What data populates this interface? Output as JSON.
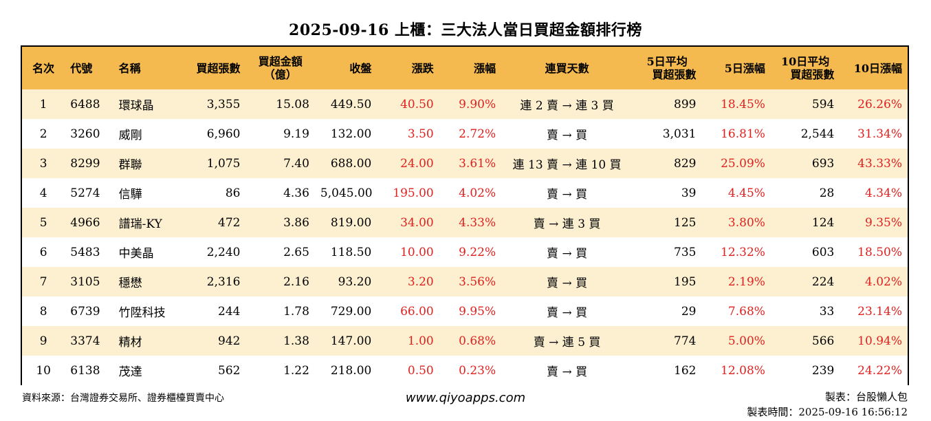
{
  "title": "2025-09-16 上櫃：三大法人當日買超金額排行榜",
  "headers": {
    "rank": "名次",
    "code": "代號",
    "name": "名稱",
    "shares": "買超張數",
    "amount_l1": "買超金額",
    "amount_l2": "（億）",
    "close": "收盤",
    "change": "漲跌",
    "pct": "漲幅",
    "streak": "連買天數",
    "avg5_l1": "5日平均",
    "avg5_l2": "買超張數",
    "pct5": "5日漲幅",
    "avg10_l1": "10日平均",
    "avg10_l2": "買超張數",
    "pct10": "10日漲幅"
  },
  "rows": [
    {
      "rank": "1",
      "code": "6488",
      "name": "環球晶",
      "shares": "3,355",
      "amount": "15.08",
      "close": "449.50",
      "change": "40.50",
      "pct": "9.90%",
      "streak": "連 2 賣 → 連 3 買",
      "avg5": "899",
      "pct5": "18.45%",
      "avg10": "594",
      "pct10": "26.26%"
    },
    {
      "rank": "2",
      "code": "3260",
      "name": "威剛",
      "shares": "6,960",
      "amount": "9.19",
      "close": "132.00",
      "change": "3.50",
      "pct": "2.72%",
      "streak": "賣 → 買",
      "avg5": "3,031",
      "pct5": "16.81%",
      "avg10": "2,544",
      "pct10": "31.34%"
    },
    {
      "rank": "3",
      "code": "8299",
      "name": "群聯",
      "shares": "1,075",
      "amount": "7.40",
      "close": "688.00",
      "change": "24.00",
      "pct": "3.61%",
      "streak": "連 13 賣 → 連 10 買",
      "avg5": "829",
      "pct5": "25.09%",
      "avg10": "693",
      "pct10": "43.33%"
    },
    {
      "rank": "4",
      "code": "5274",
      "name": "信驊",
      "shares": "86",
      "amount": "4.36",
      "close": "5,045.00",
      "change": "195.00",
      "pct": "4.02%",
      "streak": "賣 → 買",
      "avg5": "39",
      "pct5": "4.45%",
      "avg10": "28",
      "pct10": "4.34%"
    },
    {
      "rank": "5",
      "code": "4966",
      "name": "譜瑞-KY",
      "shares": "472",
      "amount": "3.86",
      "close": "819.00",
      "change": "34.00",
      "pct": "4.33%",
      "streak": "賣 → 連 3 買",
      "avg5": "125",
      "pct5": "3.80%",
      "avg10": "124",
      "pct10": "9.35%"
    },
    {
      "rank": "6",
      "code": "5483",
      "name": "中美晶",
      "shares": "2,240",
      "amount": "2.65",
      "close": "118.50",
      "change": "10.00",
      "pct": "9.22%",
      "streak": "賣 → 買",
      "avg5": "735",
      "pct5": "12.32%",
      "avg10": "603",
      "pct10": "18.50%"
    },
    {
      "rank": "7",
      "code": "3105",
      "name": "穩懋",
      "shares": "2,316",
      "amount": "2.16",
      "close": "93.20",
      "change": "3.20",
      "pct": "3.56%",
      "streak": "賣 → 買",
      "avg5": "195",
      "pct5": "2.19%",
      "avg10": "224",
      "pct10": "4.02%"
    },
    {
      "rank": "8",
      "code": "6739",
      "name": "竹陞科技",
      "shares": "244",
      "amount": "1.78",
      "close": "729.00",
      "change": "66.00",
      "pct": "9.95%",
      "streak": "賣 → 買",
      "avg5": "29",
      "pct5": "7.68%",
      "avg10": "33",
      "pct10": "23.14%"
    },
    {
      "rank": "9",
      "code": "3374",
      "name": "精材",
      "shares": "942",
      "amount": "1.38",
      "close": "147.00",
      "change": "1.00",
      "pct": "0.68%",
      "streak": "賣 → 連 5 買",
      "avg5": "774",
      "pct5": "5.00%",
      "avg10": "566",
      "pct10": "10.94%"
    },
    {
      "rank": "10",
      "code": "6138",
      "name": "茂達",
      "shares": "562",
      "amount": "1.22",
      "close": "218.00",
      "change": "0.50",
      "pct": "0.23%",
      "streak": "賣 → 買",
      "avg5": "162",
      "pct5": "12.08%",
      "avg10": "239",
      "pct10": "24.22%"
    }
  ],
  "footer": {
    "source": "資料來源：台灣證券交易所、證券櫃檯買賣中心",
    "website": "www.qiyoapps.com",
    "author": "製表：台股懶人包",
    "made_time": "製表時間：2025-09-16 16:56:12"
  },
  "colors": {
    "header_bg": "#f5ba4f",
    "odd_row_bg": "#fdf0d0",
    "positive": "#e0201e"
  }
}
